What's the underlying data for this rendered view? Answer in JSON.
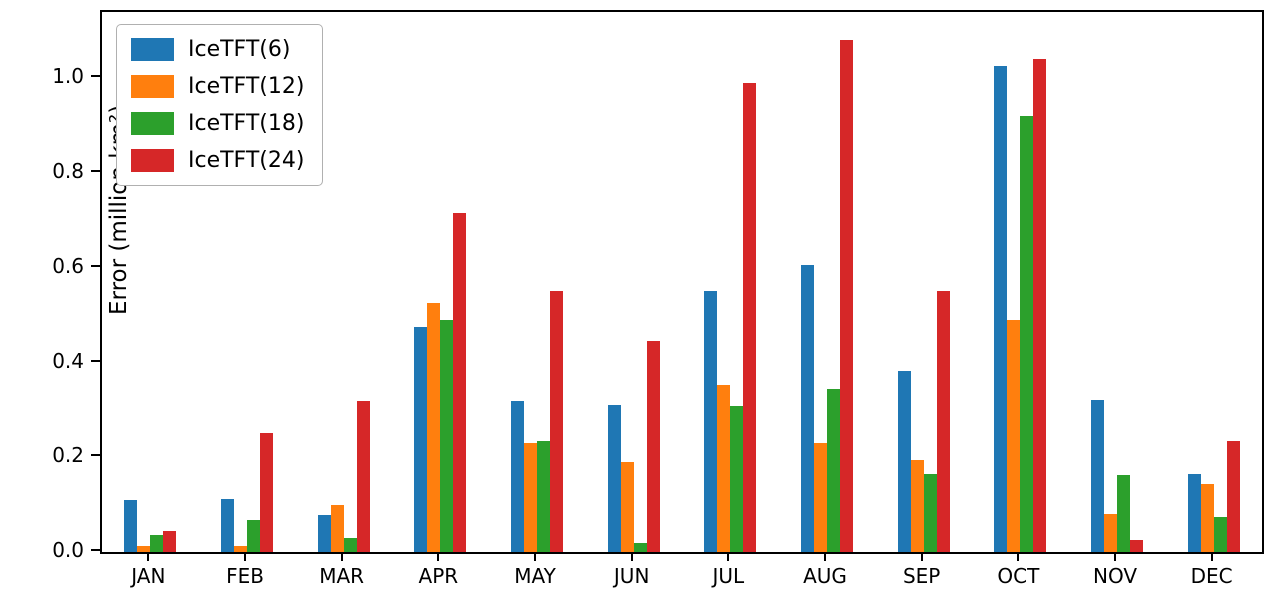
{
  "chart_data": {
    "type": "bar",
    "title": "",
    "xlabel": "",
    "ylabel": "Error (million km²)",
    "ylim": [
      0,
      1.14
    ],
    "yticks": [
      0.0,
      0.2,
      0.4,
      0.6,
      0.8,
      1.0
    ],
    "ytick_labels": [
      "0.0",
      "0.2",
      "0.4",
      "0.6",
      "0.8",
      "1.0"
    ],
    "grid": false,
    "legend_position": "upper-left",
    "categories": [
      "JAN",
      "FEB",
      "MAR",
      "APR",
      "MAY",
      "JUN",
      "JUL",
      "AUG",
      "SEP",
      "OCT",
      "NOV",
      "DEC"
    ],
    "series": [
      {
        "name": "IceTFT(6)",
        "color": "#1f77b4",
        "values": [
          0.11,
          0.112,
          0.078,
          0.475,
          0.318,
          0.31,
          0.55,
          0.605,
          0.382,
          1.025,
          0.32,
          0.165
        ]
      },
      {
        "name": "IceTFT(12)",
        "color": "#ff7f0e",
        "values": [
          0.012,
          0.012,
          0.1,
          0.525,
          0.23,
          0.19,
          0.352,
          0.23,
          0.195,
          0.49,
          0.08,
          0.143
        ]
      },
      {
        "name": "IceTFT(18)",
        "color": "#2ca02c",
        "values": [
          0.035,
          0.068,
          0.03,
          0.49,
          0.235,
          0.02,
          0.308,
          0.345,
          0.165,
          0.92,
          0.163,
          0.073
        ]
      },
      {
        "name": "IceTFT(24)",
        "color": "#d62728",
        "values": [
          0.045,
          0.252,
          0.318,
          0.715,
          0.55,
          0.445,
          0.99,
          1.08,
          0.55,
          1.04,
          0.025,
          0.235
        ]
      }
    ]
  }
}
